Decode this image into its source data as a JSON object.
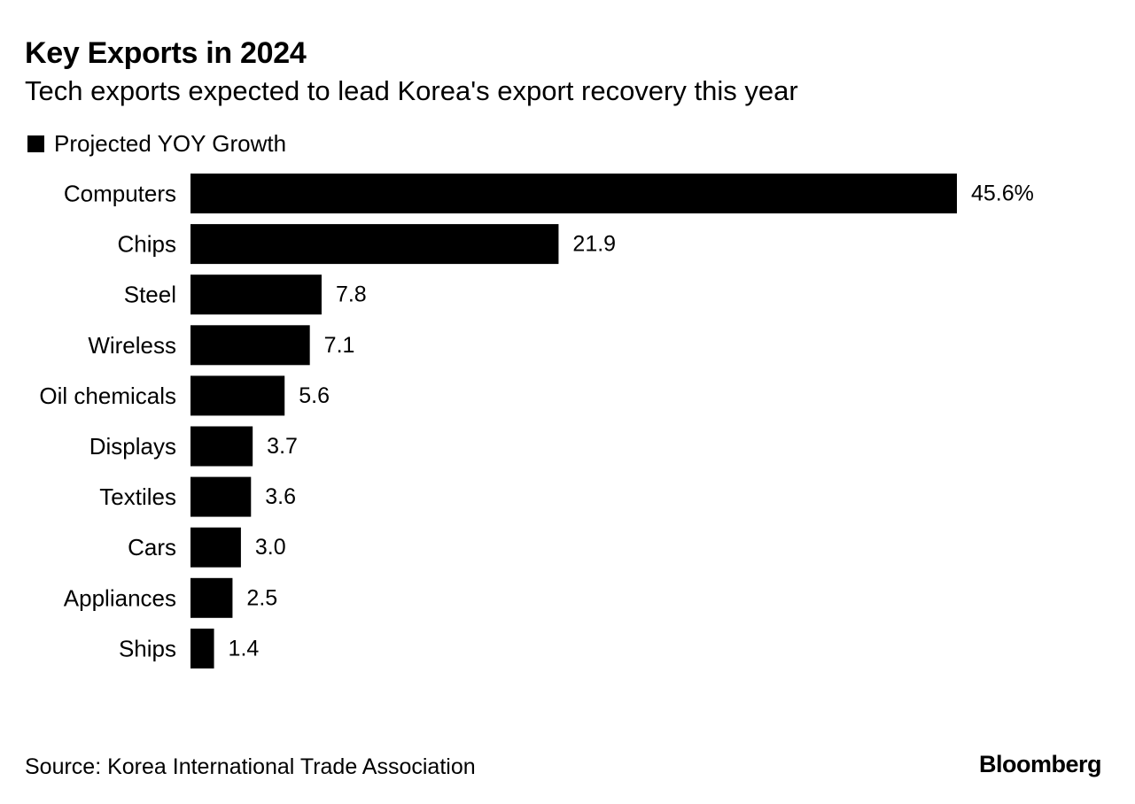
{
  "chart_data": {
    "type": "bar",
    "orientation": "horizontal",
    "title": "Key Exports in 2024",
    "subtitle": "Tech exports expected to lead Korea's export recovery this year",
    "categories": [
      "Computers",
      "Chips",
      "Steel",
      "Wireless",
      "Oil chemicals",
      "Displays",
      "Textiles",
      "Cars",
      "Appliances",
      "Ships"
    ],
    "series": [
      {
        "name": "Projected YOY Growth",
        "values": [
          45.6,
          21.9,
          7.8,
          7.1,
          5.6,
          3.7,
          3.6,
          3.0,
          2.5,
          1.4
        ],
        "labels": [
          "45.6%",
          "21.9",
          "7.8",
          "7.1",
          "5.6",
          "3.7",
          "3.6",
          "3.0",
          "2.5",
          "1.4"
        ],
        "color": "#000000"
      }
    ],
    "xlim": [
      0,
      45.6
    ],
    "grid": false,
    "legend_position": "top-left"
  },
  "source": "Source: Korea International Trade Association",
  "brand": "Bloomberg"
}
